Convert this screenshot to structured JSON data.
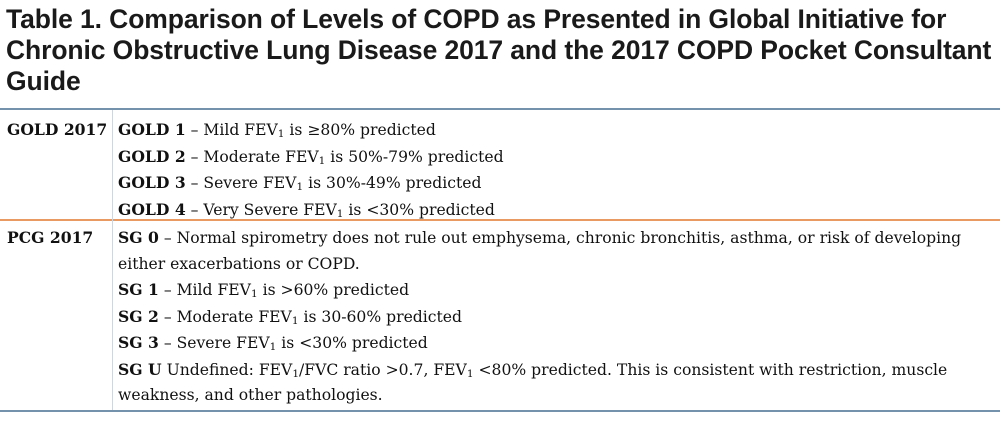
{
  "title": "Table 1. Comparison of Levels of COPD as Presented in Global Initiative for Chronic Obstructive Lung Disease 2017 and the 2017 COPD Pocket Consultant Guide",
  "groups": [
    {
      "label": "GOLD 2017",
      "entries": [
        {
          "code": "GOLD 1",
          "sep": " – ",
          "parts": [
            "Mild FEV",
            "1",
            " is ≥80% predicted"
          ]
        },
        {
          "code": "GOLD 2",
          "sep": " – ",
          "parts": [
            "Moderate FEV",
            "1",
            " is 50%-79% predicted"
          ]
        },
        {
          "code": "GOLD 3",
          "sep": " – ",
          "parts": [
            "Severe FEV",
            "1",
            " is 30%-49% predicted"
          ]
        },
        {
          "code": "GOLD 4",
          "sep": " – ",
          "parts": [
            "Very Severe FEV",
            "1",
            " is <30% predicted"
          ]
        }
      ]
    },
    {
      "label": "PCG 2017",
      "entries": [
        {
          "code": "SG 0",
          "sep": " – ",
          "parts": [
            "Normal spirometry does not rule out emphysema, chronic bronchitis, asthma, or risk of developing either exacerbations or COPD."
          ]
        },
        {
          "code": "SG 1",
          "sep": " – ",
          "parts": [
            "Mild FEV",
            "1",
            " is >60% predicted"
          ]
        },
        {
          "code": "SG 2",
          "sep": " – ",
          "parts": [
            "Moderate FEV",
            "1",
            " is 30-60% predicted"
          ]
        },
        {
          "code": "SG 3",
          "sep": " – ",
          "parts": [
            "Severe FEV",
            "1",
            " is <30% predicted"
          ]
        },
        {
          "code": "SG U",
          "sep": " ",
          "parts": [
            "Undefined: FEV",
            "1",
            "/FVC ratio >0.7, FEV",
            "1",
            " <80% predicted. This is consistent with restriction, muscle weakness, and other pathologies."
          ]
        }
      ]
    }
  ]
}
